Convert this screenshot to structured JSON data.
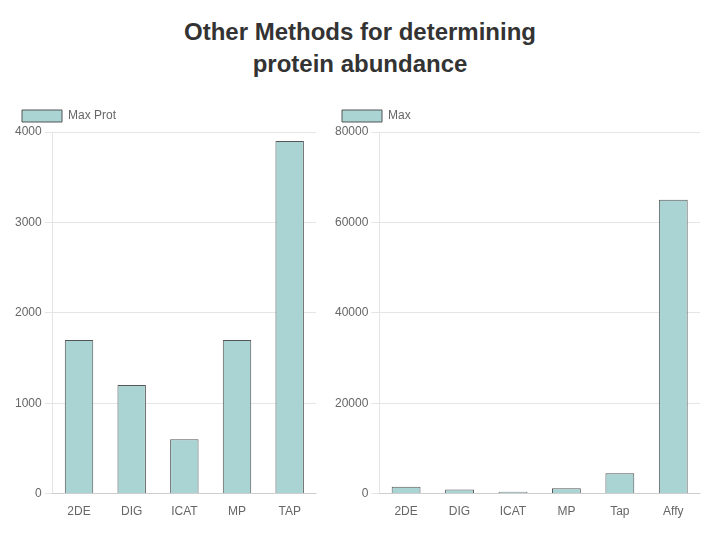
{
  "title": [
    "Other Methods for determining",
    "protein abundance"
  ],
  "chart_data": [
    {
      "type": "bar",
      "categories": [
        "2DE",
        "DIG",
        "ICAT",
        "MP",
        "TAP"
      ],
      "series": [
        {
          "name": "Max Prot",
          "color": "#AAD4D4",
          "values": [
            1700,
            1200,
            600,
            1700,
            3900
          ]
        }
      ],
      "ylim": [
        0,
        4000
      ],
      "yticks": [
        0,
        1000,
        2000,
        3000,
        4000
      ],
      "grid": true,
      "legend": "upper left"
    },
    {
      "type": "bar",
      "categories": [
        "2DE",
        "DIG",
        "ICAT",
        "MP",
        "Tap",
        "Affy"
      ],
      "series": [
        {
          "name": "Max",
          "color": "#AAD4D4",
          "values": [
            1500,
            900,
            400,
            1200,
            4500,
            65000
          ]
        }
      ],
      "ylim": [
        0,
        80000
      ],
      "yticks": [
        0,
        20000,
        40000,
        60000,
        80000
      ],
      "grid": true,
      "legend": "upper left"
    }
  ]
}
